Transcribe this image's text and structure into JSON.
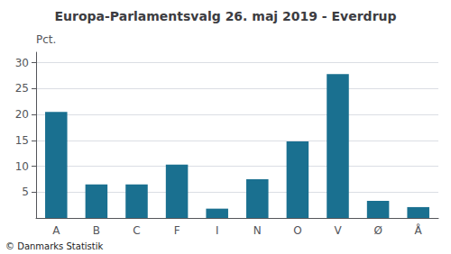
{
  "chart_data": {
    "type": "bar",
    "title": "Europa-Parlamentsvalg 26. maj 2019 - Everdrup",
    "ylabel": "Pct.",
    "annotations": [
      "© Danmarks Statistik"
    ],
    "categories": [
      "A",
      "B",
      "C",
      "F",
      "I",
      "N",
      "O",
      "V",
      "Ø",
      "Å"
    ],
    "values": [
      20.5,
      6.5,
      6.5,
      10.3,
      1.8,
      7.5,
      14.8,
      27.8,
      3.3,
      2.1
    ],
    "color": "#1a7090",
    "ylim": [
      0,
      32
    ],
    "yticks": [
      5,
      10,
      15,
      20,
      25,
      30
    ],
    "grid": true
  }
}
